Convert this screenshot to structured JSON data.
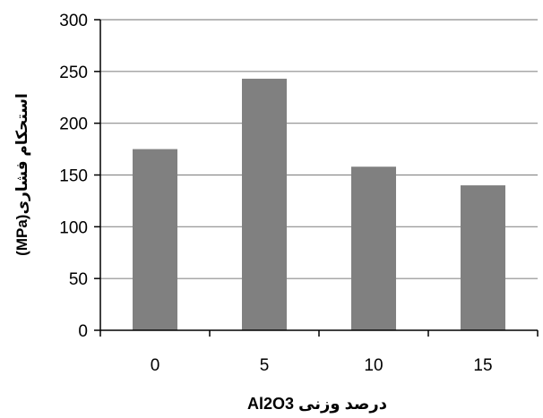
{
  "chart_data": {
    "type": "bar",
    "categories": [
      "0",
      "5",
      "10",
      "15"
    ],
    "values": [
      175,
      243,
      158,
      140
    ],
    "title": "",
    "xlabel": "درصد وزنی Al2O3",
    "ylabel": "استحکام فشاری(MPa)",
    "ylim": [
      0,
      300
    ],
    "yticks": [
      "0",
      "50",
      "100",
      "150",
      "200",
      "250",
      "300"
    ],
    "grid": true,
    "legend": "none",
    "colors": {
      "bar": "#808080",
      "axis": "#000000",
      "grid": "#8c8c8c"
    }
  }
}
